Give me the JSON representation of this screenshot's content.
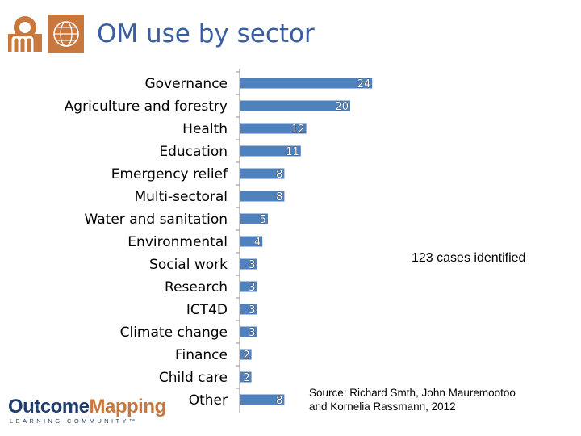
{
  "title": "OM use by sector",
  "note": "123 cases  identified",
  "source": {
    "line1": "Source: Richard Smth, John Mauremootoo",
    "line2": "and Kornelia Rassmann, 2012"
  },
  "brand": {
    "part1": "Outcome",
    "part2": "Mapping",
    "sub": "LEARNING COMMUNITY™"
  },
  "colors": {
    "bar": "#4f81bd",
    "title": "#3a5fa0",
    "logo_orange": "#c8773d",
    "brand_blue": "#1f3e6e"
  },
  "chart_data": {
    "type": "bar",
    "orientation": "horizontal",
    "categories": [
      "Governance",
      "Agriculture and forestry",
      "Health",
      "Education",
      "Emergency relief",
      "Multi-sectoral",
      "Water and sanitation",
      "Environmental",
      "Social work",
      "Research",
      "ICT4D",
      "Climate change",
      "Finance",
      "Child care",
      "Other"
    ],
    "values": [
      24,
      20,
      12,
      11,
      8,
      8,
      5,
      4,
      3,
      3,
      3,
      3,
      2,
      2,
      8
    ],
    "data_labels": [
      "24",
      "20",
      "12",
      "11",
      "8",
      "8",
      "5",
      "4",
      "3",
      "3",
      "3",
      "3",
      "2",
      "2",
      "8"
    ],
    "xlim": [
      0,
      24
    ],
    "grid": false,
    "legend": "none"
  }
}
